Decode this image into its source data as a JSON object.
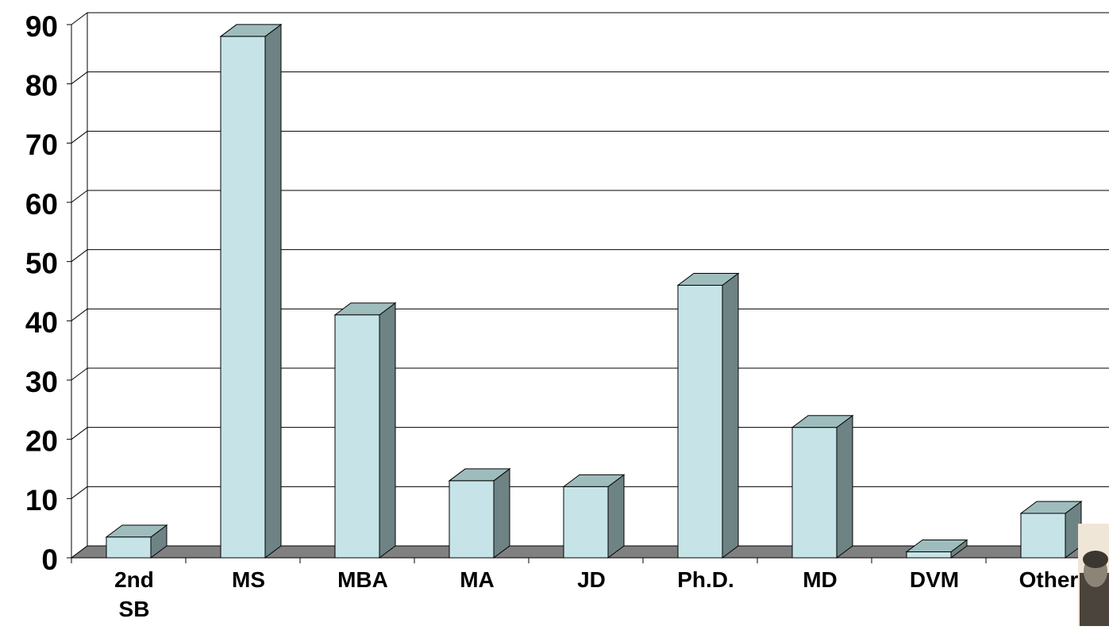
{
  "chart_data": {
    "type": "bar",
    "style": "3d",
    "categories": [
      "2nd SB",
      "MS",
      "MBA",
      "MA",
      "JD",
      "Ph.D.",
      "MD",
      "DVM",
      "Other"
    ],
    "category_label_lines": [
      [
        "2nd",
        "SB"
      ],
      [
        "MS"
      ],
      [
        "MBA"
      ],
      [
        "MA"
      ],
      [
        "JD"
      ],
      [
        "Ph.D."
      ],
      [
        "MD"
      ],
      [
        "DVM"
      ],
      [
        "Other"
      ]
    ],
    "values": [
      3.5,
      88,
      41,
      13,
      12,
      46,
      22,
      1,
      7.5
    ],
    "title": "",
    "xlabel": "",
    "ylabel": "",
    "ylim": [
      0,
      90
    ],
    "yticks": [
      0,
      10,
      20,
      30,
      40,
      50,
      60,
      70,
      80,
      90
    ],
    "ytick_labels": [
      "0",
      "10",
      "20",
      "30",
      "40",
      "50",
      "60",
      "70",
      "80",
      "90"
    ],
    "grid": true,
    "legend": "none",
    "colors": {
      "bar_front": "#c6e4e8",
      "bar_side": "#6e8384",
      "bar_top": "#9fbcbd",
      "floor": "#808080",
      "grid": "#000000"
    }
  }
}
